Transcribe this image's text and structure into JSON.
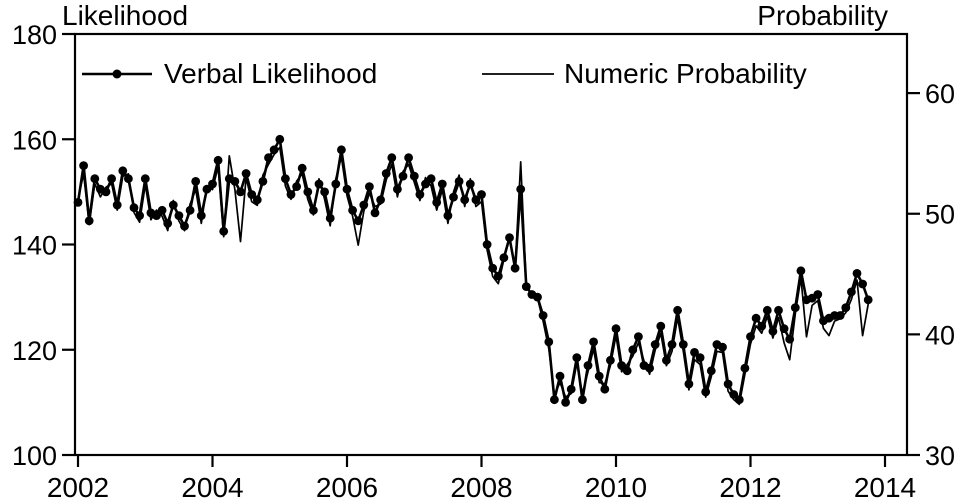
{
  "titles": {
    "left": "Likelihood",
    "right": "Probability"
  },
  "legend": {
    "items": [
      {
        "label": "Verbal Likelihood",
        "marker": "line-with-filled-circle"
      },
      {
        "label": "Numeric Probability",
        "marker": "plain-line"
      }
    ]
  },
  "chart_data": {
    "type": "line",
    "title": "",
    "grid": false,
    "legend_position": "top-inside",
    "colors": {
      "series": "#000000",
      "background": "#ffffff"
    },
    "x_axis": {
      "ticks": [
        2002,
        2004,
        2006,
        2008,
        2010,
        2012,
        2014
      ],
      "min": 2002,
      "max": 2014.33
    },
    "left_axis": {
      "label": "Likelihood",
      "ticks": [
        100,
        120,
        140,
        160,
        180
      ],
      "min": 100,
      "max": 180
    },
    "right_axis": {
      "label": "Probability",
      "ticks": [
        30,
        40,
        50,
        60
      ],
      "min": 30,
      "max": 64.9
    },
    "series": [
      {
        "name": "Verbal Likelihood",
        "axis": "left",
        "marker": "filled-circle",
        "start_year": 2002,
        "interval": "monthly",
        "values": [
          148,
          155,
          144.5,
          152.5,
          150.5,
          150,
          152.5,
          147.5,
          154,
          152.5,
          147,
          145.5,
          152.5,
          146,
          145.5,
          146.5,
          144,
          147.5,
          145.5,
          143.5,
          146.5,
          152,
          145.5,
          150.5,
          151.5,
          156,
          142.5,
          152.5,
          152,
          150,
          153.5,
          149.5,
          148.5,
          152,
          156.5,
          158,
          160,
          152.5,
          149.5,
          151,
          154.5,
          150,
          146.5,
          151.5,
          150,
          145,
          151.5,
          158,
          150.5,
          146.5,
          144.5,
          147.5,
          151,
          146,
          148.5,
          153.5,
          156.5,
          150.5,
          153,
          156.5,
          153,
          149.5,
          151.5,
          152.5,
          148,
          151.5,
          145.5,
          149,
          152,
          148.5,
          151.5,
          148.5,
          149.5,
          140,
          135.5,
          134,
          137.5,
          141.3,
          135.5,
          150.5,
          132,
          130.5,
          130,
          126.5,
          121.5,
          110.5,
          115,
          110,
          112.5,
          118.5,
          110.5,
          117,
          121.5,
          115,
          112.5,
          118,
          124,
          117,
          116,
          120,
          122.5,
          117,
          116.5,
          121,
          124.5,
          118,
          121,
          127.5,
          121,
          113.5,
          119.5,
          118.5,
          112,
          116,
          121,
          120.5,
          113.5,
          111.5,
          110.5,
          116.5,
          122.5,
          126,
          124.5,
          127.5,
          123.5,
          127.5,
          124,
          122,
          128,
          135,
          129.5,
          129.8,
          130.5,
          125.5,
          126,
          126.5,
          126.5,
          128,
          131,
          134.5,
          132.5,
          129.5
        ]
      },
      {
        "name": "Numeric Probability",
        "axis": "right",
        "marker": "none",
        "start_year": 2002,
        "interval": "monthly",
        "values": [
          51.2,
          53.3,
          49.1,
          52.5,
          51.4,
          52.2,
          52.5,
          50.3,
          53.1,
          53.3,
          50.1,
          49.3,
          52.4,
          49.5,
          50.3,
          49.8,
          48.6,
          51.1,
          49.4,
          48.6,
          50.8,
          52,
          49.2,
          52.3,
          52,
          53.9,
          48.1,
          54.8,
          52,
          47.7,
          53,
          51,
          50.7,
          53.2,
          54.1,
          54.9,
          55.5,
          52.3,
          51.2,
          52.7,
          53.3,
          51.2,
          49.9,
          52.9,
          51.2,
          49,
          52.9,
          54.7,
          51.5,
          49.8,
          47.4,
          50.2,
          51.7,
          50.6,
          50.8,
          52.8,
          54.1,
          51.4,
          53.5,
          54.1,
          52.6,
          51.1,
          53,
          52.3,
          50.3,
          52,
          49.2,
          51.8,
          53.2,
          50.6,
          52.9,
          50.6,
          51,
          47,
          44.8,
          44.2,
          46.2,
          48,
          45.4,
          54.3,
          43.9,
          43.4,
          43,
          41.1,
          38.8,
          35,
          36,
          34.8,
          35.1,
          37.6,
          35.1,
          36.9,
          38.8,
          36,
          35.9,
          37.4,
          39.9,
          36.9,
          37.5,
          38.2,
          39.3,
          37.8,
          36.7,
          38.7,
          40.1,
          37.4,
          38.6,
          41.4,
          38.6,
          35.4,
          37.9,
          37.5,
          34.8,
          36.5,
          38.6,
          38.5,
          35.3,
          34.6,
          34.2,
          36.7,
          39.2,
          40.7,
          40.1,
          41.5,
          39.7,
          41.4,
          39.3,
          37.9,
          41.7,
          44.7,
          39.8,
          42.4,
          42.8,
          40.5,
          39.9,
          41.1,
          41.3,
          41.8,
          42.9,
          44.5,
          39.9,
          42.5
        ]
      }
    ]
  }
}
